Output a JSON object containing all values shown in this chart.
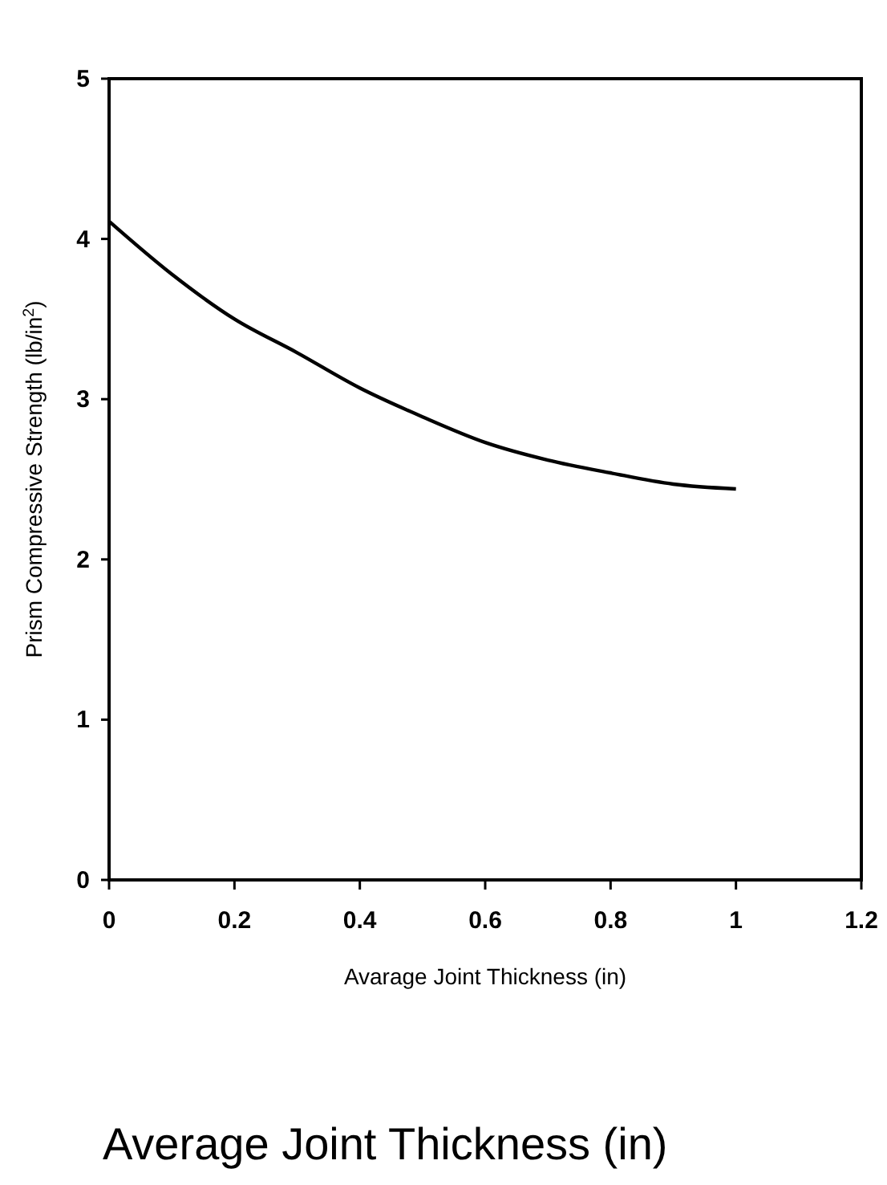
{
  "chart_data": {
    "type": "line",
    "xlabel": "Avarage Joint Thickness (in)",
    "ylabel": "Prism Compressive Strength (lb/in$^{2}$)",
    "annotations": [
      "Average Joint Thickness (in)"
    ],
    "x": [
      0,
      0.1,
      0.2,
      0.3,
      0.4,
      0.5,
      0.6,
      0.7,
      0.8,
      0.9,
      1.0
    ],
    "series": [
      {
        "color": "#000000",
        "values": [
          4.11,
          3.78,
          3.5,
          3.29,
          3.07,
          2.89,
          2.73,
          2.62,
          2.54,
          2.47,
          2.44
        ]
      }
    ],
    "xlim": [
      0,
      1.2
    ],
    "xticks": [
      0,
      0.2,
      0.4,
      0.6,
      0.8,
      1,
      1.2
    ],
    "ylim": [
      0,
      5
    ],
    "yticks": [
      0,
      1,
      2,
      3,
      4,
      5
    ],
    "grid": false,
    "marker": "none",
    "line_style": "solid"
  }
}
